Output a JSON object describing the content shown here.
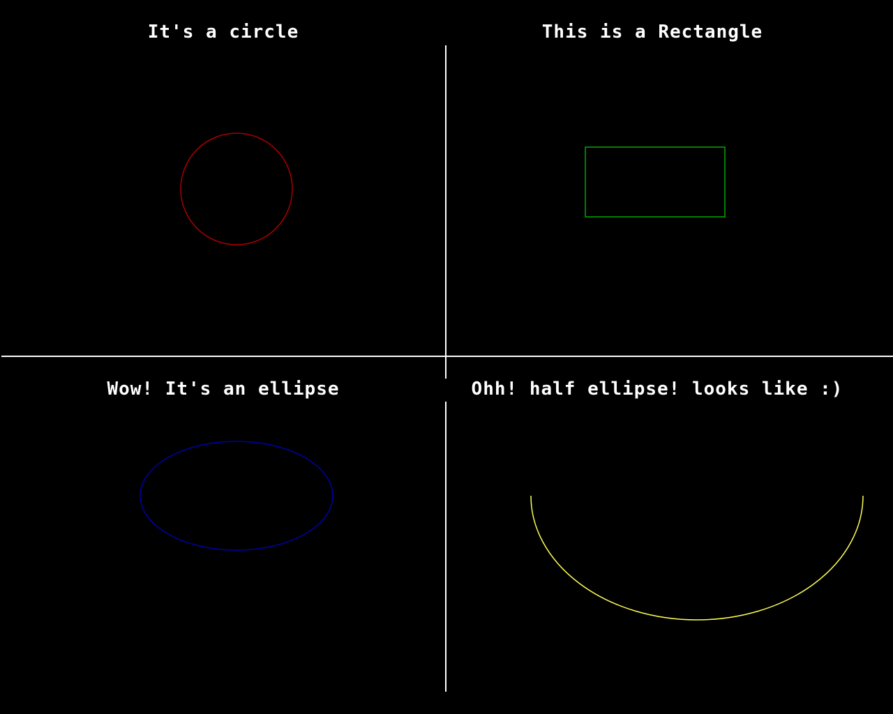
{
  "captions": {
    "top_left": "It's a circle",
    "top_right": "This is a Rectangle",
    "bottom_left": "Wow! It's an ellipse",
    "bottom_right": "Ohh! half ellipse! looks like :)"
  },
  "colors": {
    "background": "#000000",
    "divider": "#ffffff",
    "circle": "#aa0000",
    "rectangle": "#00aa00",
    "ellipse": "#0000aa",
    "half_ellipse": "#ffff55",
    "caption_text": "#ffffff"
  }
}
